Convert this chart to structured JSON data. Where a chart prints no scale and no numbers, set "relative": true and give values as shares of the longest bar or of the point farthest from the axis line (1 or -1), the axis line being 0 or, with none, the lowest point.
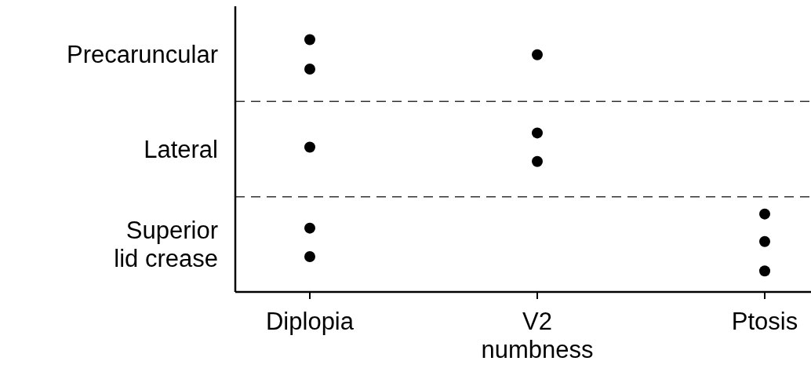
{
  "chart_data": {
    "type": "scatter",
    "categories": [
      "Diplopia",
      "V2 numbness",
      "Ptosis"
    ],
    "relative": true,
    "annotations": [
      "Precaruncular",
      "Lateral",
      "Superior lid crease"
    ],
    "ref_lines": [
      {
        "axis": "y",
        "value": 0.755,
        "line_style": "dashed",
        "color": "#333333"
      },
      {
        "axis": "y",
        "value": 0.377,
        "line_style": "dashed",
        "color": "#333333"
      }
    ],
    "marker": "circle",
    "series": [
      {
        "color": "#000000",
        "x": [
          "Diplopia",
          "Diplopia",
          "Diplopia",
          "Diplopia",
          "Diplopia",
          "V2 numbness",
          "V2 numbness",
          "V2 numbness",
          "Ptosis",
          "Ptosis",
          "Ptosis"
        ],
        "values": [
          1,
          0.883,
          0.574,
          0.253,
          0.14,
          0.94,
          0.63,
          0.517,
          0.309,
          0.2,
          0.083
        ]
      }
    ]
  }
}
